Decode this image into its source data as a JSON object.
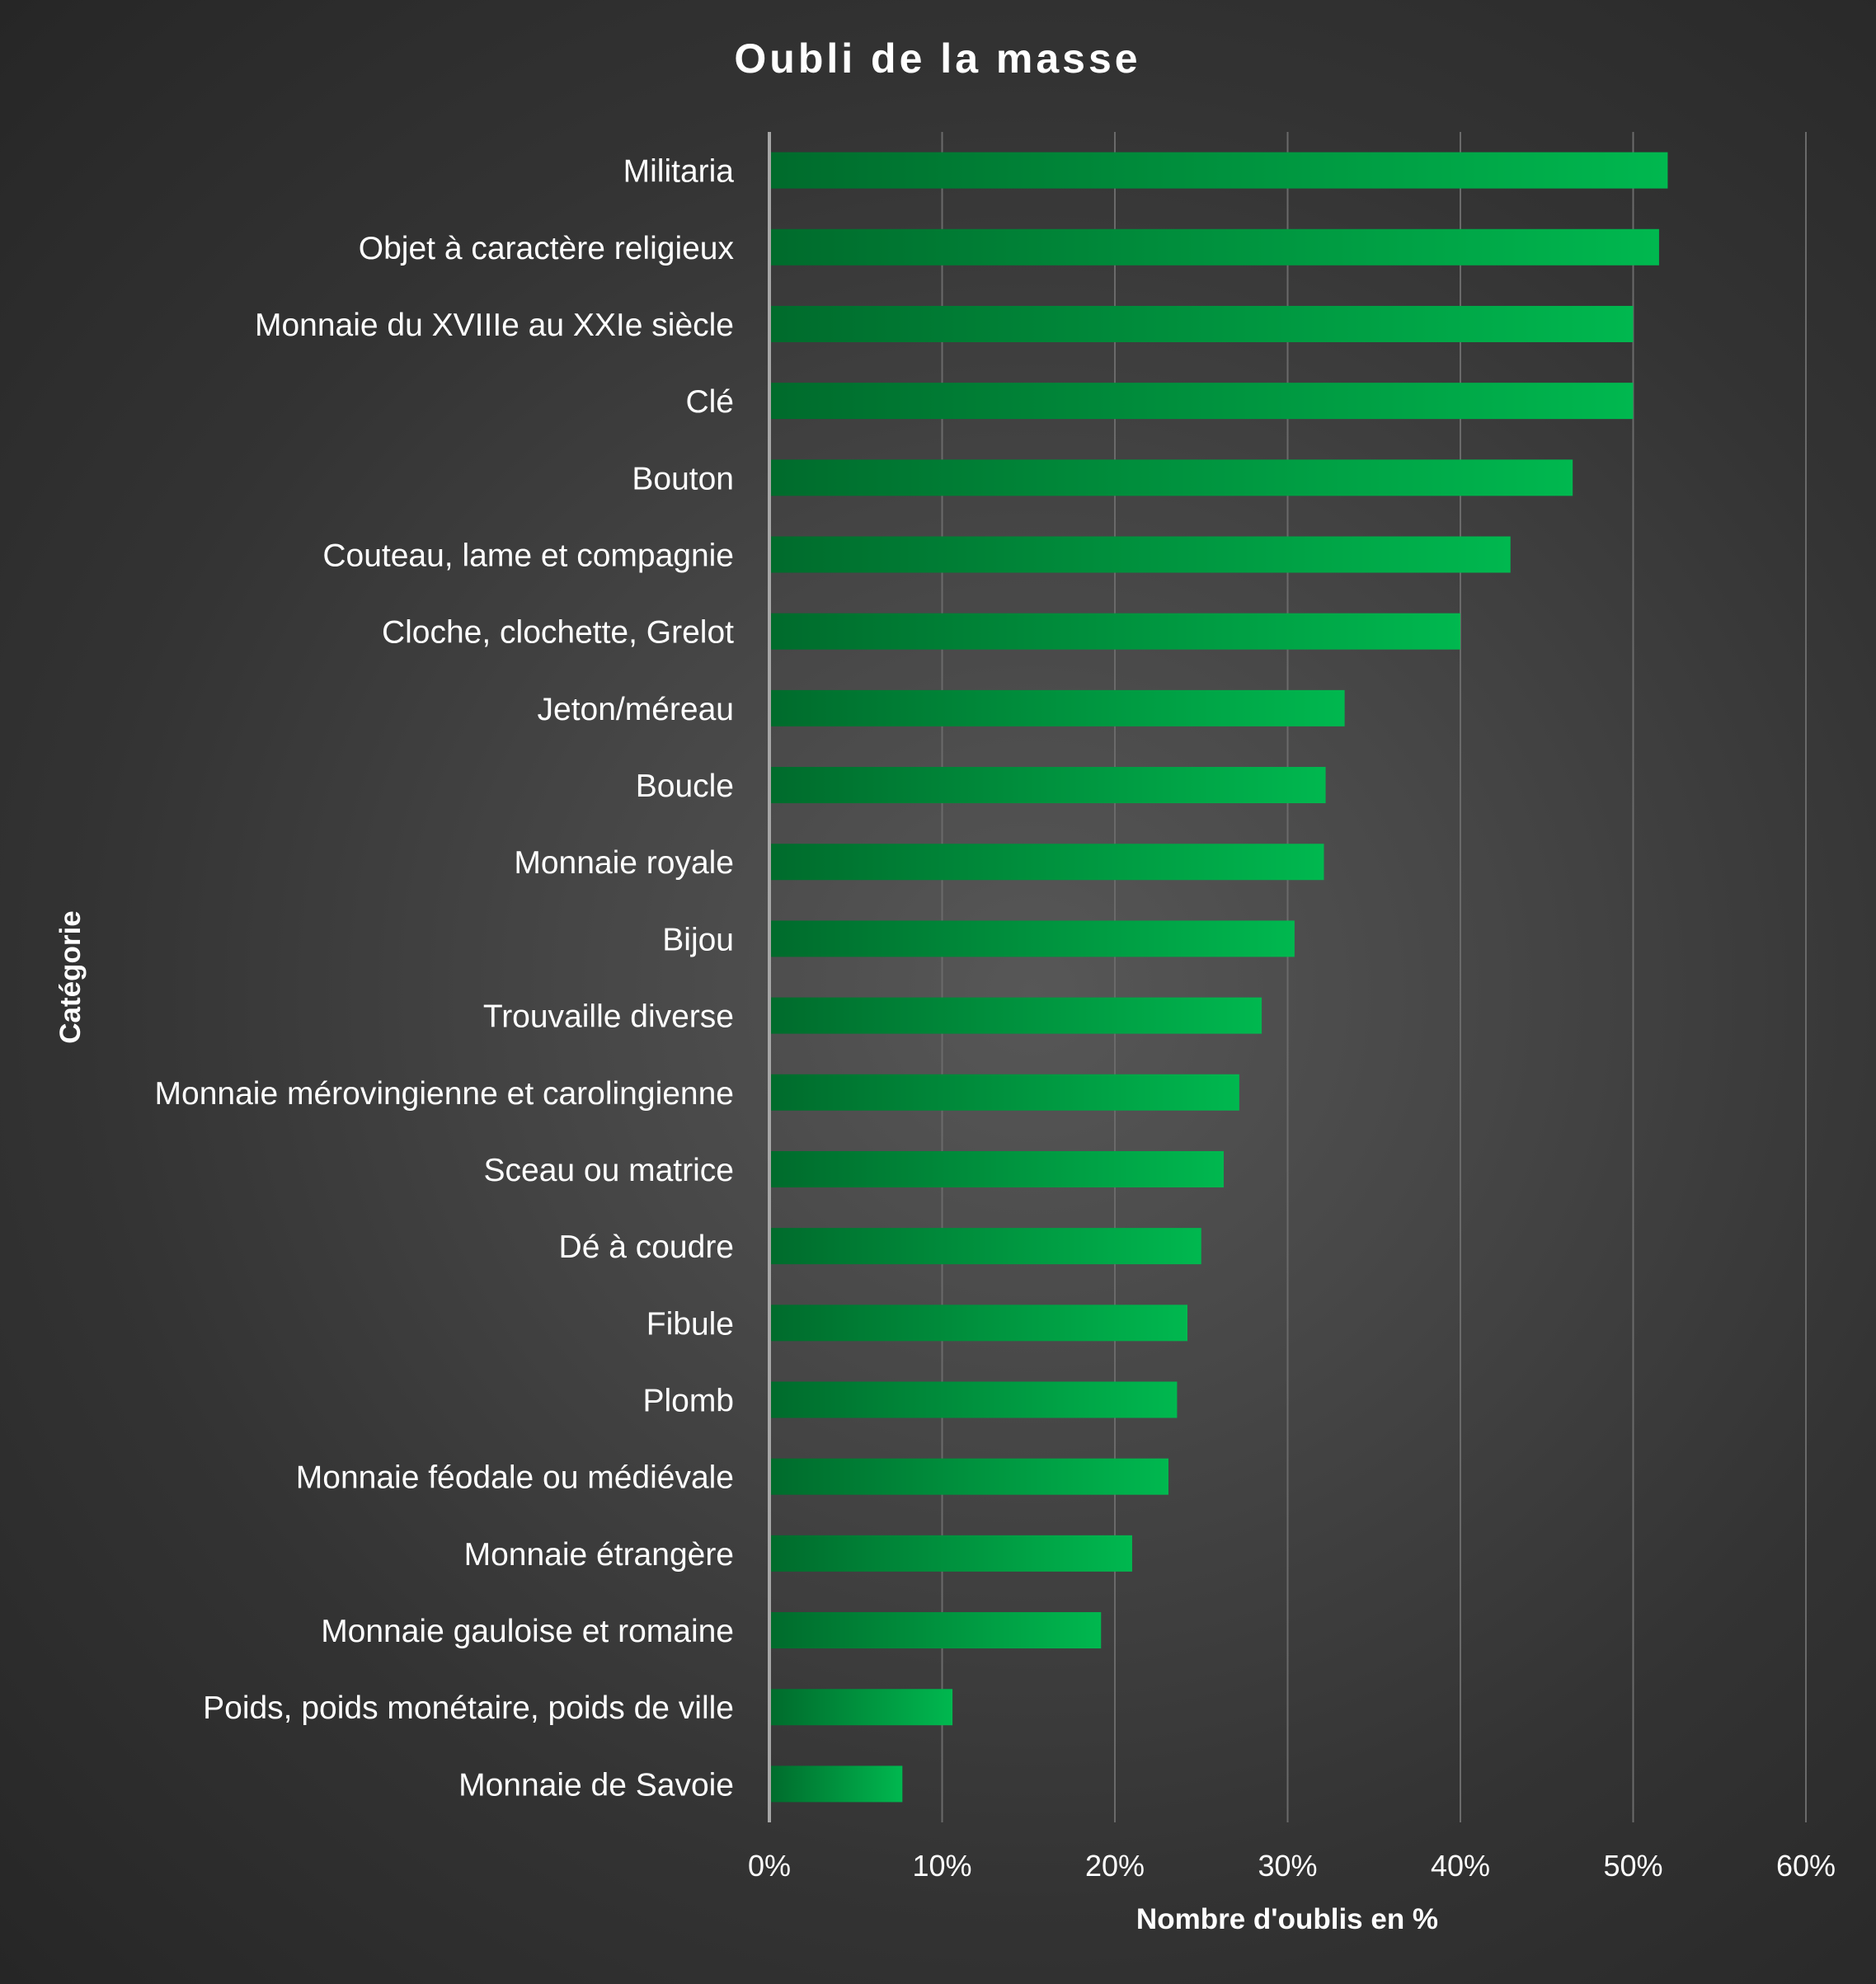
{
  "colors": {
    "bar_dark": "#006b2c",
    "bar_light": "#00b84f",
    "gridline": "#6a6a6a",
    "axis": "#a6a6a6",
    "text": "#ffffff"
  },
  "chart_data": {
    "type": "bar",
    "orientation": "horizontal",
    "title": "Oubli de la masse",
    "xlabel": "Nombre d'oublis en %",
    "ylabel": "Catégorie",
    "xlim": [
      0,
      60
    ],
    "x_ticks": [
      "0%",
      "10%",
      "20%",
      "30%",
      "40%",
      "50%",
      "60%"
    ],
    "grid": true,
    "legend": "none",
    "categories": [
      "Militaria",
      "Objet à caractère religieux",
      "Monnaie du XVIIIe au XXIe siècle",
      "Clé",
      "Bouton",
      "Couteau, lame et compagnie",
      "Cloche, clochette, Grelot",
      "Jeton/méreau",
      "Boucle",
      "Monnaie royale",
      "Bijou",
      "Trouvaille diverse",
      "Monnaie mérovingienne et carolingienne",
      "Sceau ou matrice",
      "Dé à coudre",
      "Fibule",
      "Plomb",
      "Monnaie féodale ou médiévale",
      "Monnaie étrangère",
      "Monnaie gauloise et romaine",
      "Poids, poids monétaire, poids de ville",
      "Monnaie de Savoie"
    ],
    "values": [
      52,
      51.5,
      50,
      50,
      46.5,
      42.9,
      40,
      33.3,
      32.2,
      32.1,
      30.4,
      28.5,
      27.2,
      26.3,
      25,
      24.2,
      23.6,
      23.1,
      21,
      19.2,
      10.6,
      7.7
    ]
  }
}
